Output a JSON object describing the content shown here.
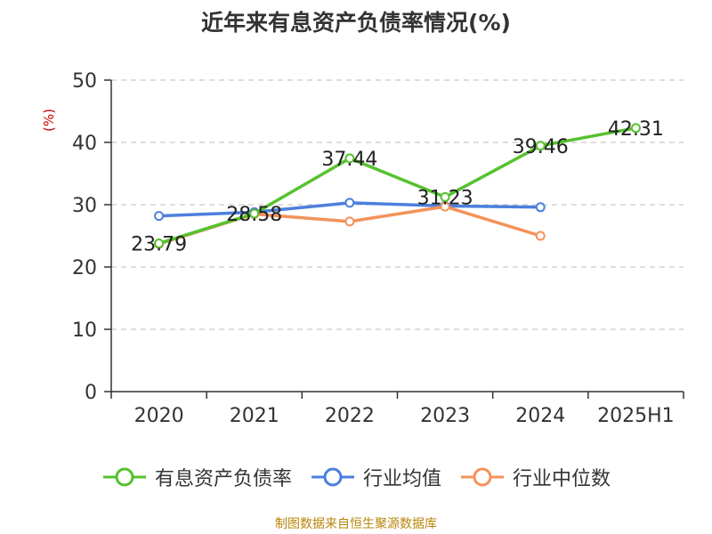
{
  "title": "近年来有息资产负债率情况(%)",
  "y_unit": "(%)",
  "source": "制图数据来自恒生聚源数据库",
  "colors": {
    "series_green": "#55c22e",
    "series_blue": "#4c7fdc",
    "series_orange": "#f3925a",
    "axis": "#333333",
    "grid": "#bbbbbb"
  },
  "chart_data": {
    "type": "line",
    "categories": [
      "2020",
      "2021",
      "2022",
      "2023",
      "2024",
      "2025H1"
    ],
    "yticks": [
      0,
      10,
      20,
      30,
      40,
      50
    ],
    "ylim": [
      0,
      50
    ],
    "grid": true,
    "legend_position": "bottom",
    "series": [
      {
        "name": "有息资产负债率",
        "color": "#55c22e",
        "values": [
          23.79,
          28.58,
          37.44,
          31.23,
          39.46,
          42.31
        ],
        "labels": [
          "23.79",
          "28.58",
          "37.44",
          "31.23",
          "39.46",
          "42.31"
        ]
      },
      {
        "name": "行业均值",
        "color": "#4c7fdc",
        "values": [
          28.2,
          28.8,
          30.3,
          29.8,
          29.6,
          null
        ]
      },
      {
        "name": "行业中位数",
        "color": "#f3925a",
        "values": [
          23.7,
          28.5,
          27.3,
          29.7,
          25.0,
          null
        ]
      }
    ]
  }
}
